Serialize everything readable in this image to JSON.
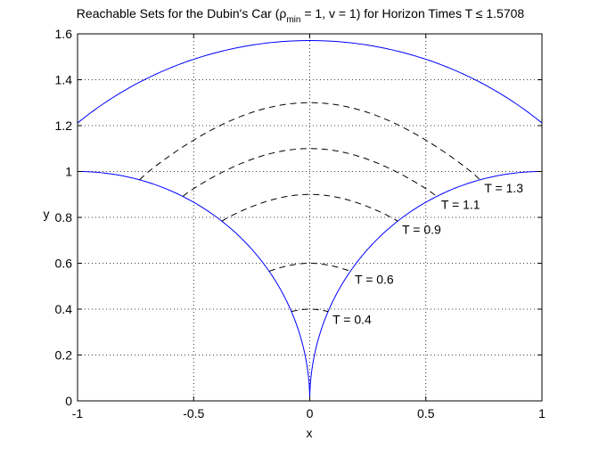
{
  "chart_data": {
    "type": "line",
    "title_parts": {
      "before": "Reachable Sets for the Dubin's Car (",
      "rho": "ρ",
      "sub": "min",
      "after": " = 1, v = 1) for Horizon Times T ≤ 1.5708"
    },
    "xlabel": "x",
    "ylabel": "y",
    "xlim": [
      -1,
      1
    ],
    "ylim": [
      0,
      1.6
    ],
    "x_ticks": [
      "-1",
      "-0.5",
      "0",
      "0.5",
      "1"
    ],
    "y_ticks": [
      "0",
      "0.2",
      "0.4",
      "0.6",
      "0.8",
      "1",
      "1.2",
      "1.4",
      "1.6"
    ],
    "grid": true,
    "horizon_T_max": 1.5708,
    "outer_boundary": {
      "color": "#0000ff",
      "style": "solid",
      "top_arc": {
        "x": [
          -1,
          -0.75,
          -0.5,
          -0.25,
          0,
          0.25,
          0.5,
          0.75,
          1
        ],
        "y": [
          1,
          1.38,
          1.49,
          1.55,
          1.5708,
          1.55,
          1.49,
          1.38,
          1
        ]
      }
    },
    "contours": [
      {
        "label": "T = 0.4",
        "T": 0.4,
        "color": "#000000",
        "style": "dashed",
        "x": [
          -0.08,
          -0.04,
          0,
          0.04,
          0.08
        ],
        "y": [
          0.39,
          0.4,
          0.4,
          0.4,
          0.39
        ]
      },
      {
        "label": "T = 0.6",
        "T": 0.6,
        "color": "#000000",
        "style": "dashed",
        "x": [
          -0.19,
          -0.1,
          0,
          0.1,
          0.19
        ],
        "y": [
          0.57,
          0.62,
          0.63,
          0.62,
          0.57
        ]
      },
      {
        "label": "T = 0.9",
        "T": 0.9,
        "color": "#000000",
        "style": "dashed",
        "x": [
          -0.37,
          -0.2,
          0,
          0.2,
          0.37
        ],
        "y": [
          0.77,
          0.84,
          0.87,
          0.84,
          0.77
        ]
      },
      {
        "label": "T = 1.1",
        "T": 1.1,
        "color": "#000000",
        "style": "dashed",
        "x": [
          -0.54,
          -0.3,
          0,
          0.3,
          0.54
        ],
        "y": [
          0.89,
          1.05,
          1.1,
          1.05,
          0.89
        ]
      },
      {
        "label": "T = 1.3",
        "T": 1.3,
        "color": "#000000",
        "style": "dashed",
        "x": [
          -0.76,
          -0.4,
          0,
          0.4,
          0.76
        ],
        "y": [
          0.97,
          1.25,
          1.33,
          1.25,
          0.97
        ]
      }
    ]
  }
}
